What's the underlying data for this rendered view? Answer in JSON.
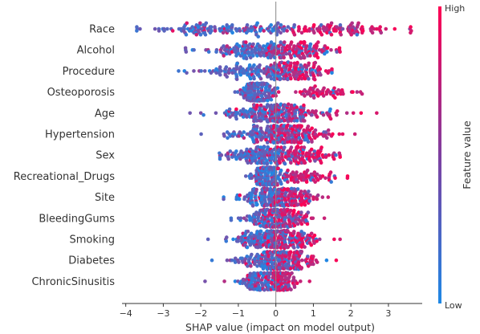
{
  "chart_data": {
    "type": "scatter",
    "subtype": "shap-beeswarm",
    "xlabel": "SHAP value (impact on model output)",
    "xlim": [
      -4.1,
      3.9
    ],
    "xticks": [
      -4,
      -3,
      -2,
      -1,
      0,
      1,
      2,
      3
    ],
    "grid": false,
    "colors": {
      "low": "#1e88e5",
      "high": "#ff0052"
    },
    "colorbar": {
      "label": "Feature value",
      "high_label": "High",
      "low_label": "Low",
      "placement": "right"
    },
    "features": [
      {
        "name": "Race",
        "min": -3.7,
        "max": 3.6,
        "neg": {
          "mean": -1.2,
          "sd": 1.1,
          "w": 0.55
        },
        "pos": {
          "mean": 1.5,
          "sd": 0.9,
          "w": 0.45
        }
      },
      {
        "name": "Alcohol",
        "min": -2.4,
        "max": 1.7,
        "neg": {
          "mean": -0.6,
          "sd": 0.7,
          "w": 0.6
        },
        "pos": {
          "mean": 0.7,
          "sd": 0.45,
          "w": 0.4
        }
      },
      {
        "name": "Procedure",
        "min": -2.6,
        "max": 1.5,
        "neg": {
          "mean": -0.6,
          "sd": 0.7,
          "w": 0.6
        },
        "pos": {
          "mean": 0.6,
          "sd": 0.4,
          "w": 0.4
        }
      },
      {
        "name": "Osteoporosis",
        "min": -1.1,
        "max": 2.3,
        "neg": {
          "mean": -0.45,
          "sd": 0.2,
          "w": 0.75
        },
        "pos": {
          "mean": 1.2,
          "sd": 0.55,
          "w": 0.25
        }
      },
      {
        "name": "Age",
        "min": -2.3,
        "max": 2.7,
        "neg": {
          "mean": -0.2,
          "sd": 0.6,
          "w": 0.6
        },
        "pos": {
          "mean": 0.4,
          "sd": 0.7,
          "w": 0.4
        }
      },
      {
        "name": "Hypertension",
        "min": -2.0,
        "max": 2.1,
        "neg": {
          "mean": -0.3,
          "sd": 0.6,
          "w": 0.55
        },
        "pos": {
          "mean": 0.5,
          "sd": 0.5,
          "w": 0.45
        }
      },
      {
        "name": "Sex",
        "min": -1.5,
        "max": 1.7,
        "neg": {
          "mean": -0.4,
          "sd": 0.5,
          "w": 0.55
        },
        "pos": {
          "mean": 0.7,
          "sd": 0.45,
          "w": 0.45
        }
      },
      {
        "name": "Recreational_Drugs",
        "min": -0.8,
        "max": 1.9,
        "neg": {
          "mean": -0.2,
          "sd": 0.2,
          "w": 0.7
        },
        "pos": {
          "mean": 0.7,
          "sd": 0.5,
          "w": 0.3
        }
      },
      {
        "name": "Site",
        "min": -1.4,
        "max": 1.4,
        "neg": {
          "mean": -0.3,
          "sd": 0.4,
          "w": 0.55
        },
        "pos": {
          "mean": 0.4,
          "sd": 0.4,
          "w": 0.45
        }
      },
      {
        "name": "BleedingGums",
        "min": -1.2,
        "max": 1.3,
        "neg": {
          "mean": -0.2,
          "sd": 0.35,
          "w": 0.55
        },
        "pos": {
          "mean": 0.3,
          "sd": 0.35,
          "w": 0.45
        }
      },
      {
        "name": "Smoking",
        "min": -1.8,
        "max": 1.7,
        "neg": {
          "mean": -0.2,
          "sd": 0.5,
          "w": 0.55
        },
        "pos": {
          "mean": 0.3,
          "sd": 0.45,
          "w": 0.45
        }
      },
      {
        "name": "Diabetes",
        "min": -1.7,
        "max": 1.6,
        "neg": {
          "mean": -0.2,
          "sd": 0.4,
          "w": 0.55
        },
        "pos": {
          "mean": 0.4,
          "sd": 0.4,
          "w": 0.45
        }
      },
      {
        "name": "ChronicSinusitis",
        "min": -1.9,
        "max": 0.9,
        "neg": {
          "mean": -0.4,
          "sd": 0.35,
          "w": 0.5
        },
        "pos": {
          "mean": 0.15,
          "sd": 0.2,
          "w": 0.5
        }
      }
    ]
  }
}
